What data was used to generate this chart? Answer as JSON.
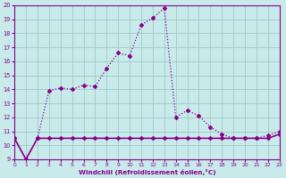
{
  "xlabel": "Windchill (Refroidissement éolien,°C)",
  "background_color": "#c8eaea",
  "grid_color": "#a0c8c8",
  "line_color": "#880088",
  "xlim": [
    0,
    23
  ],
  "ylim": [
    9,
    20
  ],
  "yticks": [
    9,
    10,
    11,
    12,
    13,
    14,
    15,
    16,
    17,
    18,
    19,
    20
  ],
  "xticks": [
    0,
    1,
    2,
    3,
    4,
    5,
    6,
    7,
    8,
    9,
    10,
    11,
    12,
    13,
    14,
    15,
    16,
    17,
    18,
    19,
    20,
    21,
    22,
    23
  ],
  "line_solid_x": [
    0,
    1,
    2,
    3,
    4,
    5,
    6,
    7,
    8,
    9,
    10,
    11,
    12,
    13,
    14,
    15,
    16,
    17,
    18,
    19,
    20,
    21,
    22,
    23
  ],
  "line_solid_y": [
    10.5,
    9.0,
    10.5,
    10.5,
    10.5,
    10.5,
    10.5,
    10.5,
    10.5,
    10.5,
    10.5,
    10.5,
    10.5,
    10.5,
    10.5,
    10.5,
    10.5,
    10.5,
    10.5,
    10.5,
    10.5,
    10.5,
    10.5,
    10.8
  ],
  "line_dot_x": [
    0,
    1,
    2,
    3,
    4,
    5,
    6,
    7,
    8,
    9,
    10,
    11,
    12,
    13,
    14,
    15,
    16,
    17,
    18,
    19,
    20,
    21,
    22,
    23
  ],
  "line_dot_y": [
    10.5,
    9.0,
    10.5,
    13.9,
    14.1,
    14.0,
    14.3,
    14.2,
    15.5,
    16.6,
    16.4,
    18.6,
    19.1,
    19.8,
    12.0,
    12.5,
    12.1,
    11.3,
    10.8,
    10.5,
    10.5,
    10.5,
    10.7,
    11.0
  ]
}
